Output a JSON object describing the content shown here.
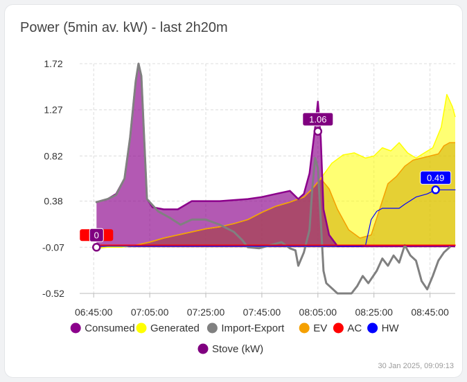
{
  "card": {
    "title": "Power (5min av. kW) - last 2h20m",
    "updated": "30 Jan 2025, 09:09:13"
  },
  "chart_data": {
    "type": "area",
    "title": "Power (5min av. kW) - last 2h20m",
    "xlabel": "",
    "ylabel": "",
    "x_ticks": [
      "06:45:00",
      "07:05:00",
      "07:25:00",
      "07:45:00",
      "08:05:00",
      "08:25:00",
      "08:45:00"
    ],
    "y_ticks": [
      "1.72",
      "1.27",
      "0.82",
      "0.38",
      "-0.07",
      "-0.52"
    ],
    "xlim": [
      "06:40",
      "08:54"
    ],
    "ylim": [
      -0.52,
      1.72
    ],
    "grid": true,
    "legend_position": "bottom",
    "series": [
      {
        "name": "Generated",
        "color": "#ffff00",
        "style": "area",
        "points": [
          [
            "06:46",
            -0.08
          ],
          [
            "06:50",
            -0.07
          ],
          [
            "06:55",
            -0.07
          ],
          [
            "07:00",
            -0.05
          ],
          [
            "07:05",
            -0.02
          ],
          [
            "07:10",
            0.02
          ],
          [
            "07:15",
            0.05
          ],
          [
            "07:20",
            0.08
          ],
          [
            "07:25",
            0.11
          ],
          [
            "07:30",
            0.13
          ],
          [
            "07:35",
            0.16
          ],
          [
            "07:40",
            0.2
          ],
          [
            "07:45",
            0.27
          ],
          [
            "07:50",
            0.33
          ],
          [
            "07:55",
            0.37
          ],
          [
            "08:00",
            0.42
          ],
          [
            "08:03",
            0.5
          ],
          [
            "08:06",
            0.6
          ],
          [
            "08:10",
            0.75
          ],
          [
            "08:14",
            0.83
          ],
          [
            "08:18",
            0.85
          ],
          [
            "08:22",
            0.8
          ],
          [
            "08:25",
            0.82
          ],
          [
            "08:28",
            0.9
          ],
          [
            "08:31",
            0.87
          ],
          [
            "08:34",
            0.95
          ],
          [
            "08:37",
            0.85
          ],
          [
            "08:40",
            0.8
          ],
          [
            "08:43",
            0.85
          ],
          [
            "08:46",
            0.9
          ],
          [
            "08:49",
            1.1
          ],
          [
            "08:51",
            1.42
          ],
          [
            "08:53",
            1.3
          ],
          [
            "08:54",
            1.2
          ]
        ]
      },
      {
        "name": "EV",
        "color": "#f5a000",
        "style": "area",
        "points": [
          [
            "06:46",
            -0.06
          ],
          [
            "06:55",
            -0.06
          ],
          [
            "07:00",
            -0.05
          ],
          [
            "07:05",
            -0.02
          ],
          [
            "07:10",
            0.02
          ],
          [
            "07:15",
            0.05
          ],
          [
            "07:20",
            0.08
          ],
          [
            "07:25",
            0.11
          ],
          [
            "07:30",
            0.13
          ],
          [
            "07:35",
            0.16
          ],
          [
            "07:40",
            0.2
          ],
          [
            "07:45",
            0.27
          ],
          [
            "07:50",
            0.33
          ],
          [
            "07:55",
            0.37
          ],
          [
            "08:00",
            0.42
          ],
          [
            "08:03",
            0.5
          ],
          [
            "08:06",
            0.6
          ],
          [
            "08:09",
            0.5
          ],
          [
            "08:12",
            0.3
          ],
          [
            "08:16",
            0.1
          ],
          [
            "08:20",
            0.02
          ],
          [
            "08:24",
            0.05
          ],
          [
            "08:27",
            0.3
          ],
          [
            "08:30",
            0.55
          ],
          [
            "08:33",
            0.62
          ],
          [
            "08:36",
            0.72
          ],
          [
            "08:39",
            0.78
          ],
          [
            "08:42",
            0.8
          ],
          [
            "08:45",
            0.82
          ],
          [
            "08:48",
            0.84
          ],
          [
            "08:50",
            0.92
          ],
          [
            "08:52",
            0.95
          ],
          [
            "08:54",
            0.95
          ]
        ]
      },
      {
        "name": "Consumed",
        "color": "#8b008b",
        "style": "area",
        "points": [
          [
            "06:46",
            0.37
          ],
          [
            "06:50",
            0.4
          ],
          [
            "06:53",
            0.45
          ],
          [
            "06:56",
            0.6
          ],
          [
            "06:58",
            1.0
          ],
          [
            "07:00",
            1.55
          ],
          [
            "07:01",
            1.72
          ],
          [
            "07:02",
            1.6
          ],
          [
            "07:03",
            1.0
          ],
          [
            "07:04",
            0.4
          ],
          [
            "07:06",
            0.32
          ],
          [
            "07:10",
            0.3
          ],
          [
            "07:15",
            0.3
          ],
          [
            "07:20",
            0.38
          ],
          [
            "07:30",
            0.38
          ],
          [
            "07:40",
            0.4
          ],
          [
            "07:45",
            0.42
          ],
          [
            "07:50",
            0.45
          ],
          [
            "07:55",
            0.48
          ],
          [
            "07:58",
            0.4
          ],
          [
            "08:00",
            0.45
          ],
          [
            "08:02",
            0.65
          ],
          [
            "08:04",
            1.1
          ],
          [
            "08:05",
            1.35
          ],
          [
            "08:06",
            1.0
          ],
          [
            "08:07",
            0.3
          ],
          [
            "08:09",
            0.05
          ],
          [
            "08:12",
            -0.06
          ],
          [
            "08:54",
            -0.06
          ]
        ]
      },
      {
        "name": "Import-Export",
        "color": "#808080",
        "style": "line",
        "points": [
          [
            "06:46",
            0.37
          ],
          [
            "06:50",
            0.4
          ],
          [
            "06:53",
            0.44
          ],
          [
            "06:56",
            0.6
          ],
          [
            "06:58",
            1.0
          ],
          [
            "07:00",
            1.55
          ],
          [
            "07:01",
            1.72
          ],
          [
            "07:02",
            1.6
          ],
          [
            "07:03",
            1.0
          ],
          [
            "07:04",
            0.4
          ],
          [
            "07:08",
            0.28
          ],
          [
            "07:12",
            0.22
          ],
          [
            "07:16",
            0.15
          ],
          [
            "07:20",
            0.2
          ],
          [
            "07:25",
            0.2
          ],
          [
            "07:30",
            0.15
          ],
          [
            "07:35",
            0.08
          ],
          [
            "07:38",
            0.0
          ],
          [
            "07:40",
            -0.07
          ],
          [
            "07:44",
            -0.08
          ],
          [
            "07:48",
            -0.05
          ],
          [
            "07:52",
            -0.02
          ],
          [
            "07:55",
            -0.08
          ],
          [
            "07:57",
            -0.1
          ],
          [
            "07:58",
            -0.25
          ],
          [
            "08:00",
            -0.12
          ],
          [
            "08:02",
            0.1
          ],
          [
            "08:03",
            0.5
          ],
          [
            "08:04",
            0.8
          ],
          [
            "08:05",
            0.7
          ],
          [
            "08:06",
            0.2
          ],
          [
            "08:07",
            -0.3
          ],
          [
            "08:08",
            -0.42
          ],
          [
            "08:12",
            -0.52
          ],
          [
            "08:17",
            -0.52
          ],
          [
            "08:19",
            -0.45
          ],
          [
            "08:21",
            -0.35
          ],
          [
            "08:23",
            -0.42
          ],
          [
            "08:26",
            -0.3
          ],
          [
            "08:28",
            -0.18
          ],
          [
            "08:30",
            -0.25
          ],
          [
            "08:32",
            -0.15
          ],
          [
            "08:34",
            -0.22
          ],
          [
            "08:36",
            -0.05
          ],
          [
            "08:38",
            -0.15
          ],
          [
            "08:40",
            -0.2
          ],
          [
            "08:42",
            -0.4
          ],
          [
            "08:44",
            -0.48
          ],
          [
            "08:46",
            -0.35
          ],
          [
            "08:48",
            -0.2
          ],
          [
            "08:50",
            -0.12
          ],
          [
            "08:52",
            -0.07
          ]
        ]
      },
      {
        "name": "HW",
        "color": "#0000ff",
        "style": "line",
        "points": [
          [
            "06:46",
            -0.06
          ],
          [
            "08:20",
            -0.06
          ],
          [
            "08:22",
            -0.05
          ],
          [
            "08:24",
            0.2
          ],
          [
            "08:26",
            0.28
          ],
          [
            "08:28",
            0.31
          ],
          [
            "08:34",
            0.31
          ],
          [
            "08:36",
            0.35
          ],
          [
            "08:40",
            0.42
          ],
          [
            "08:44",
            0.45
          ],
          [
            "08:47",
            0.49
          ],
          [
            "08:54",
            0.49
          ]
        ]
      },
      {
        "name": "AC",
        "color": "#ff0000",
        "style": "line",
        "points": [
          [
            "06:46",
            -0.05
          ],
          [
            "08:54",
            -0.05
          ]
        ]
      },
      {
        "name": "Stove (kW)",
        "color": "#800080",
        "style": "line",
        "points": []
      }
    ],
    "annotations": [
      {
        "text": "1.06",
        "x": "08:05",
        "y": 1.06,
        "color": "#800080"
      },
      {
        "text": "0.49",
        "x": "08:47",
        "y": 0.49,
        "color": "#0000ff"
      },
      {
        "text": "0",
        "x": "06:46",
        "y": -0.07,
        "color": "#800080",
        "back_color": "#ff0000"
      }
    ]
  },
  "legend": [
    {
      "name": "Consumed",
      "color": "#8b008b"
    },
    {
      "name": "Generated",
      "color": "#ffff00"
    },
    {
      "name": "Import-Export",
      "color": "#808080"
    },
    {
      "name": "EV",
      "color": "#f5a000"
    },
    {
      "name": "AC",
      "color": "#ff0000"
    },
    {
      "name": "HW",
      "color": "#0000ff"
    },
    {
      "name": "Stove (kW)",
      "color": "#800080"
    }
  ]
}
